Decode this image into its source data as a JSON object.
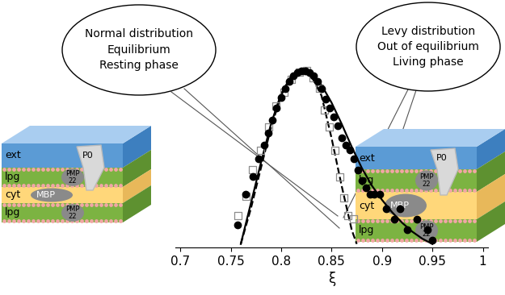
{
  "chart_data": {
    "type": "scatter",
    "xlabel": "ξ",
    "xlim": [
      0.695,
      1.005
    ],
    "xticks": [
      0.7,
      0.75,
      0.8,
      0.85,
      0.9,
      0.95,
      1
    ],
    "ylim": [
      0,
      1.1
    ],
    "yticks": [],
    "tick_labels": "x",
    "grid": false,
    "series": [
      {
        "type": "scatter",
        "marker": "o",
        "color": "#000000",
        "x": [
          0.757,
          0.765,
          0.772,
          0.778,
          0.783,
          0.787,
          0.791,
          0.795,
          0.8,
          0.804,
          0.808,
          0.812,
          0.816,
          0.82,
          0.824,
          0.828,
          0.832,
          0.836,
          0.84,
          0.844,
          0.848,
          0.852,
          0.856,
          0.86,
          0.864,
          0.868,
          0.872,
          0.876,
          0.88,
          0.884,
          0.888,
          0.892,
          0.898,
          0.904,
          0.912,
          0.918,
          0.925,
          0.935,
          0.945,
          0.95
        ],
        "values": [
          0.13,
          0.3,
          0.4,
          0.5,
          0.58,
          0.65,
          0.72,
          0.79,
          0.85,
          0.9,
          0.94,
          0.97,
          0.99,
          1.0,
          1.0,
          0.99,
          0.97,
          0.94,
          0.9,
          0.84,
          0.79,
          0.74,
          0.69,
          0.62,
          0.58,
          0.55,
          0.5,
          0.44,
          0.38,
          0.34,
          0.3,
          0.3,
          0.3,
          0.22,
          0.16,
          0.22,
          0.1,
          0.16,
          0.1,
          0.04
        ]
      },
      {
        "type": "scatter",
        "marker": "s",
        "color": "#8c8c8c",
        "x": [
          0.757,
          0.765,
          0.772,
          0.78,
          0.788,
          0.795,
          0.803,
          0.81,
          0.818,
          0.825,
          0.832,
          0.838,
          0.843,
          0.848,
          0.853,
          0.858,
          0.862,
          0.866,
          0.872
        ],
        "values": [
          0.18,
          0.29,
          0.44,
          0.55,
          0.68,
          0.8,
          0.88,
          0.95,
          0.99,
          1.0,
          0.96,
          0.9,
          0.78,
          0.68,
          0.55,
          0.4,
          0.28,
          0.18,
          0.16
        ]
      },
      {
        "type": "line",
        "line_style": "dashed",
        "color": "#000000",
        "x": [
          0.76,
          0.77,
          0.78,
          0.79,
          0.8,
          0.81,
          0.82,
          0.83,
          0.84,
          0.85,
          0.86,
          0.87,
          0.875
        ],
        "values": [
          0.02,
          0.22,
          0.45,
          0.68,
          0.86,
          0.97,
          1.0,
          0.97,
          0.86,
          0.62,
          0.35,
          0.1,
          0.02
        ]
      },
      {
        "type": "line",
        "line_style": "solid",
        "color": "#000000",
        "x": [
          0.76,
          0.77,
          0.78,
          0.79,
          0.8,
          0.81,
          0.82,
          0.83,
          0.84,
          0.85,
          0.86,
          0.87,
          0.88,
          0.89,
          0.9,
          0.91,
          0.92,
          0.93,
          0.94,
          0.95
        ],
        "values": [
          0.02,
          0.25,
          0.48,
          0.7,
          0.87,
          0.97,
          1.0,
          0.98,
          0.92,
          0.82,
          0.7,
          0.57,
          0.45,
          0.35,
          0.27,
          0.2,
          0.14,
          0.09,
          0.05,
          0.02
        ]
      }
    ],
    "annotations": [
      {
        "lines": [
          "Normal distribution",
          "Equilibrium",
          "Resting phase"
        ]
      },
      {
        "lines": [
          "Levy distribution",
          "Out of equilibrium",
          "Living phase"
        ]
      }
    ]
  },
  "diagrams": [
    {
      "layers": [
        "ext",
        "lpg",
        "cyt",
        "lpg"
      ],
      "proteins": [
        "P0",
        "PMP\n22",
        "MBP",
        "PMP\n22"
      ]
    },
    {
      "layers": [
        "ext",
        "lpg",
        "cyt",
        "lpg"
      ],
      "proteins": [
        "P0",
        "PMP\n22",
        "MBP",
        "PMP\n22"
      ]
    }
  ]
}
